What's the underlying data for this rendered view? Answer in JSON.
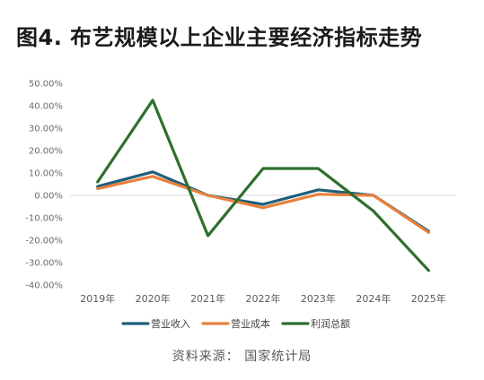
{
  "title": "图4. 布艺规模以上企业主要经济指标走势",
  "source": "资料来源： 国家统计局",
  "colors": {
    "营业收入": "#1f5f7a",
    "营业成本": "#e8803d",
    "利润总额": "#2e6f2e"
  },
  "chart_data": {
    "type": "line",
    "categories": [
      "2019年",
      "2020年",
      "2021年",
      "2022年",
      "2023年",
      "2024年",
      "2025年"
    ],
    "series": [
      {
        "name": "营业收入",
        "values": [
          4.0,
          10.5,
          0.0,
          -4.0,
          2.5,
          0.0,
          -16.0
        ]
      },
      {
        "name": "营业成本",
        "values": [
          3.0,
          8.5,
          0.0,
          -5.5,
          0.5,
          0.0,
          -16.5
        ]
      },
      {
        "name": "利润总额",
        "values": [
          6.0,
          42.5,
          -18.0,
          12.0,
          12.0,
          -7.0,
          -33.5
        ]
      }
    ],
    "yticks": [
      "50.00%",
      "40.00%",
      "30.00%",
      "20.00%",
      "10.00%",
      "0.00%",
      "-10.00%",
      "-20.00%",
      "-30.00%",
      "-40.00%"
    ],
    "ytick_values": [
      50,
      40,
      30,
      20,
      10,
      0,
      -10,
      -20,
      -30,
      -40
    ],
    "ylim": [
      -40,
      50
    ],
    "grid": false,
    "legend_position": "bottom"
  }
}
